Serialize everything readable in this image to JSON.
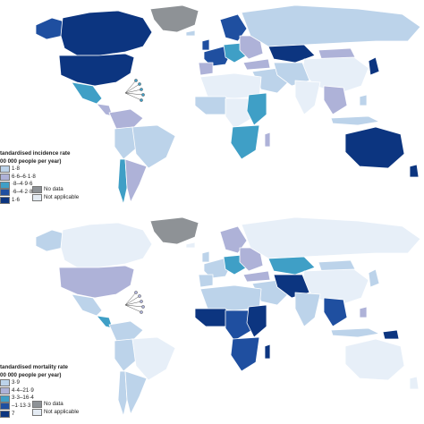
{
  "colors": {
    "water": "#ffffff",
    "border": "#ffffff",
    "no_data": "#8e9296",
    "not_applicable": "#e4ebf3",
    "scale": [
      "#e7eff8",
      "#bcd3ea",
      "#aeb2d8",
      "#3f9fc6",
      "#1f4fa0",
      "#0c3580"
    ]
  },
  "incidence_map": {
    "legend_title_line1": "tandardised incidence rate",
    "legend_title_line2": "00 000 people per year)",
    "bins": [
      "1·8",
      "6·6–6·1·8",
      "·8–4·9·6",
      "·6–4·2·8",
      "1·6"
    ],
    "no_data_label": "No data",
    "not_applicable_label": "Not applicable"
  },
  "mortality_map": {
    "legend_title_line1": "tandardised mortality rate",
    "legend_title_line2": "00 000 people per year)",
    "bins": [
      "3·9",
      "4·4–21·9",
      "3·3–16·4",
      "–1·13·3",
      "7"
    ],
    "no_data_label": "No data",
    "not_applicable_label": "Not applicable"
  }
}
